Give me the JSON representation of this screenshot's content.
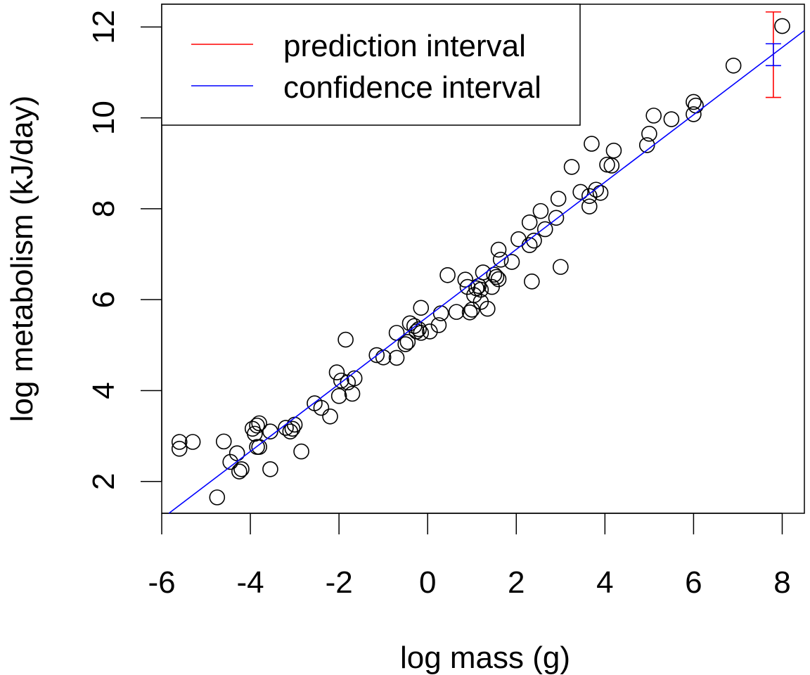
{
  "chart_data": {
    "type": "scatter",
    "xlabel": "log mass (g)",
    "ylabel": "log metabolism (kJ/day)",
    "xlim": [
      -6.0,
      8.5
    ],
    "ylim": [
      1.3,
      12.5
    ],
    "x_ticks": [
      "-6",
      "-4",
      "-2",
      "0",
      "2",
      "4",
      "6",
      "8"
    ],
    "y_ticks": [
      "2",
      "4",
      "6",
      "8",
      "10",
      "12"
    ],
    "grid": false,
    "legend_position": "top-left",
    "legend": [
      {
        "label": "prediction interval",
        "color": "#ff0000"
      },
      {
        "label": "confidence interval",
        "color": "#0000ff"
      }
    ],
    "points": [
      [
        -5.6,
        2.87
      ],
      [
        -5.6,
        2.72
      ],
      [
        -5.3,
        2.87
      ],
      [
        -4.75,
        1.65
      ],
      [
        -4.6,
        2.88
      ],
      [
        -4.45,
        2.43
      ],
      [
        -4.3,
        2.62
      ],
      [
        -4.25,
        2.22
      ],
      [
        -4.2,
        2.27
      ],
      [
        -3.95,
        3.16
      ],
      [
        -3.9,
        3.05
      ],
      [
        -3.85,
        3.23
      ],
      [
        -3.8,
        3.28
      ],
      [
        -3.85,
        2.76
      ],
      [
        -3.8,
        2.76
      ],
      [
        -3.55,
        3.1
      ],
      [
        -3.55,
        2.27
      ],
      [
        -3.2,
        3.18
      ],
      [
        -3.1,
        3.1
      ],
      [
        -3.05,
        3.16
      ],
      [
        -3.0,
        3.25
      ],
      [
        -2.85,
        2.66
      ],
      [
        -2.55,
        3.72
      ],
      [
        -2.4,
        3.62
      ],
      [
        -2.2,
        3.43
      ],
      [
        -2.05,
        4.4
      ],
      [
        -2.0,
        3.88
      ],
      [
        -1.95,
        4.22
      ],
      [
        -1.85,
        5.12
      ],
      [
        -1.8,
        4.18
      ],
      [
        -1.7,
        3.93
      ],
      [
        -1.65,
        4.27
      ],
      [
        -1.15,
        4.78
      ],
      [
        -1.0,
        4.73
      ],
      [
        -0.7,
        5.27
      ],
      [
        -0.7,
        4.72
      ],
      [
        -0.5,
        5.02
      ],
      [
        -0.45,
        5.07
      ],
      [
        -0.4,
        5.48
      ],
      [
        -0.3,
        5.42
      ],
      [
        -0.25,
        5.3
      ],
      [
        -0.2,
        5.35
      ],
      [
        -0.15,
        5.82
      ],
      [
        -0.15,
        5.27
      ],
      [
        0.05,
        5.3
      ],
      [
        0.25,
        5.44
      ],
      [
        0.3,
        5.7
      ],
      [
        0.45,
        6.54
      ],
      [
        0.65,
        5.73
      ],
      [
        0.85,
        6.44
      ],
      [
        0.9,
        6.28
      ],
      [
        0.95,
        5.72
      ],
      [
        1.0,
        5.78
      ],
      [
        1.05,
        6.1
      ],
      [
        1.1,
        6.25
      ],
      [
        1.15,
        6.3
      ],
      [
        1.2,
        6.22
      ],
      [
        1.2,
        5.95
      ],
      [
        1.25,
        6.6
      ],
      [
        1.35,
        5.8
      ],
      [
        1.45,
        6.28
      ],
      [
        1.5,
        6.55
      ],
      [
        1.55,
        6.5
      ],
      [
        1.6,
        6.45
      ],
      [
        1.6,
        7.1
      ],
      [
        1.65,
        6.88
      ],
      [
        1.9,
        6.83
      ],
      [
        2.05,
        7.33
      ],
      [
        2.3,
        7.7
      ],
      [
        2.3,
        7.2
      ],
      [
        2.35,
        6.4
      ],
      [
        2.4,
        7.3
      ],
      [
        2.55,
        7.95
      ],
      [
        2.65,
        7.55
      ],
      [
        2.9,
        7.8
      ],
      [
        2.95,
        8.22
      ],
      [
        3.0,
        6.72
      ],
      [
        3.25,
        8.92
      ],
      [
        3.45,
        8.37
      ],
      [
        3.65,
        8.28
      ],
      [
        3.65,
        8.05
      ],
      [
        3.7,
        9.43
      ],
      [
        3.8,
        8.42
      ],
      [
        3.9,
        8.35
      ],
      [
        4.05,
        8.97
      ],
      [
        4.15,
        8.95
      ],
      [
        4.2,
        9.28
      ],
      [
        4.95,
        9.4
      ],
      [
        5.0,
        9.65
      ],
      [
        5.1,
        10.05
      ],
      [
        5.5,
        9.97
      ],
      [
        6.0,
        10.35
      ],
      [
        6.0,
        10.08
      ],
      [
        6.05,
        10.27
      ],
      [
        6.9,
        11.15
      ],
      [
        8.0,
        12.02
      ]
    ],
    "fit_line": {
      "color": "#0000ff",
      "x": [
        -6.0,
        8.5
      ],
      "y": [
        1.18,
        11.92
      ]
    },
    "prediction_interval": {
      "x": 7.8,
      "lower": 10.45,
      "upper": 12.33,
      "color": "#ff0000"
    },
    "confidence_interval": {
      "x": 7.8,
      "lower": 11.15,
      "upper": 11.63,
      "color": "#0000ff"
    }
  }
}
